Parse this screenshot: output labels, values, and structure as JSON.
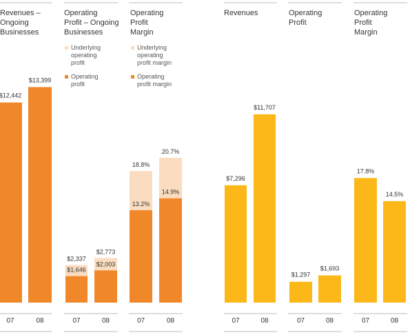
{
  "colors": {
    "orange_dark": "#f0882a",
    "orange_light": "#fbdcc0",
    "yellow": "#fbb818",
    "rule": "#bbbbbb"
  },
  "chart_data": [
    {
      "type": "bar",
      "title": "Revenues – Ongoing Businesses",
      "title_lines": [
        "Revenues –",
        "Ongoing",
        "Businesses"
      ],
      "categories": [
        "07",
        "08"
      ],
      "series": [
        {
          "name": "",
          "values": [
            12442,
            13399
          ]
        }
      ],
      "labels": [
        "$12,442",
        "$13,399"
      ],
      "ylim": [
        0,
        15000
      ],
      "color": "orange_dark"
    },
    {
      "type": "bar",
      "title": "Operating Profit – Ongoing Businesses",
      "title_lines": [
        "Operating",
        "Profit – Ongoing",
        "Businesses"
      ],
      "categories": [
        "07",
        "08"
      ],
      "series": [
        {
          "name": "Operating profit",
          "values": [
            1646,
            2003
          ]
        },
        {
          "name": "Underlying operating profit",
          "values": [
            2337,
            2773
          ]
        }
      ],
      "labels_total": [
        "$2,337",
        "$2,773"
      ],
      "labels_inner": [
        "$1,646",
        "$2,003"
      ],
      "legend": [
        {
          "lines": [
            "Underlying",
            "operating",
            "profit"
          ],
          "color": "orange_light"
        },
        {
          "lines": [
            "Operating",
            "profit"
          ],
          "color": "orange_dark"
        }
      ],
      "ylim": [
        0,
        15000
      ]
    },
    {
      "type": "bar",
      "title": "Operating Profit Margin",
      "title_lines": [
        "Operating",
        "Profit",
        "Margin"
      ],
      "categories": [
        "07",
        "08"
      ],
      "series": [
        {
          "name": "Operating profit margin",
          "values": [
            13.2,
            14.9
          ]
        },
        {
          "name": "Underlying operating profit margin",
          "values": [
            18.8,
            20.7
          ]
        }
      ],
      "labels_total": [
        "18.8%",
        "20.7%"
      ],
      "labels_inner": [
        "13.2%",
        "14.9%"
      ],
      "legend": [
        {
          "lines": [
            "Underlying",
            "operating",
            "profit margin"
          ],
          "color": "orange_light"
        },
        {
          "lines": [
            "Operating",
            "profit margin"
          ],
          "color": "orange_dark"
        }
      ],
      "ylim": [
        0,
        24
      ]
    },
    {
      "type": "bar",
      "title": "Revenues",
      "title_lines": [
        "Revenues"
      ],
      "categories": [
        "07",
        "08"
      ],
      "series": [
        {
          "name": "",
          "values": [
            7296,
            11707
          ]
        }
      ],
      "labels": [
        "$7,296",
        "$11,707"
      ],
      "ylim": [
        0,
        15000
      ],
      "color": "yellow"
    },
    {
      "type": "bar",
      "title": "Operating Profit",
      "title_lines": [
        "Operating",
        "Profit"
      ],
      "categories": [
        "07",
        "08"
      ],
      "series": [
        {
          "name": "",
          "values": [
            1297,
            1693
          ]
        }
      ],
      "labels": [
        "$1,297",
        "$1,693"
      ],
      "ylim": [
        0,
        15000
      ],
      "color": "yellow"
    },
    {
      "type": "bar",
      "title": "Operating Profit Margin",
      "title_lines": [
        "Operating",
        "Profit",
        "Margin"
      ],
      "categories": [
        "07",
        "08"
      ],
      "series": [
        {
          "name": "",
          "values": [
            17.8,
            14.5
          ]
        }
      ],
      "labels": [
        "17.8%",
        "14.5%"
      ],
      "ylim": [
        0,
        24
      ],
      "color": "yellow"
    }
  ]
}
